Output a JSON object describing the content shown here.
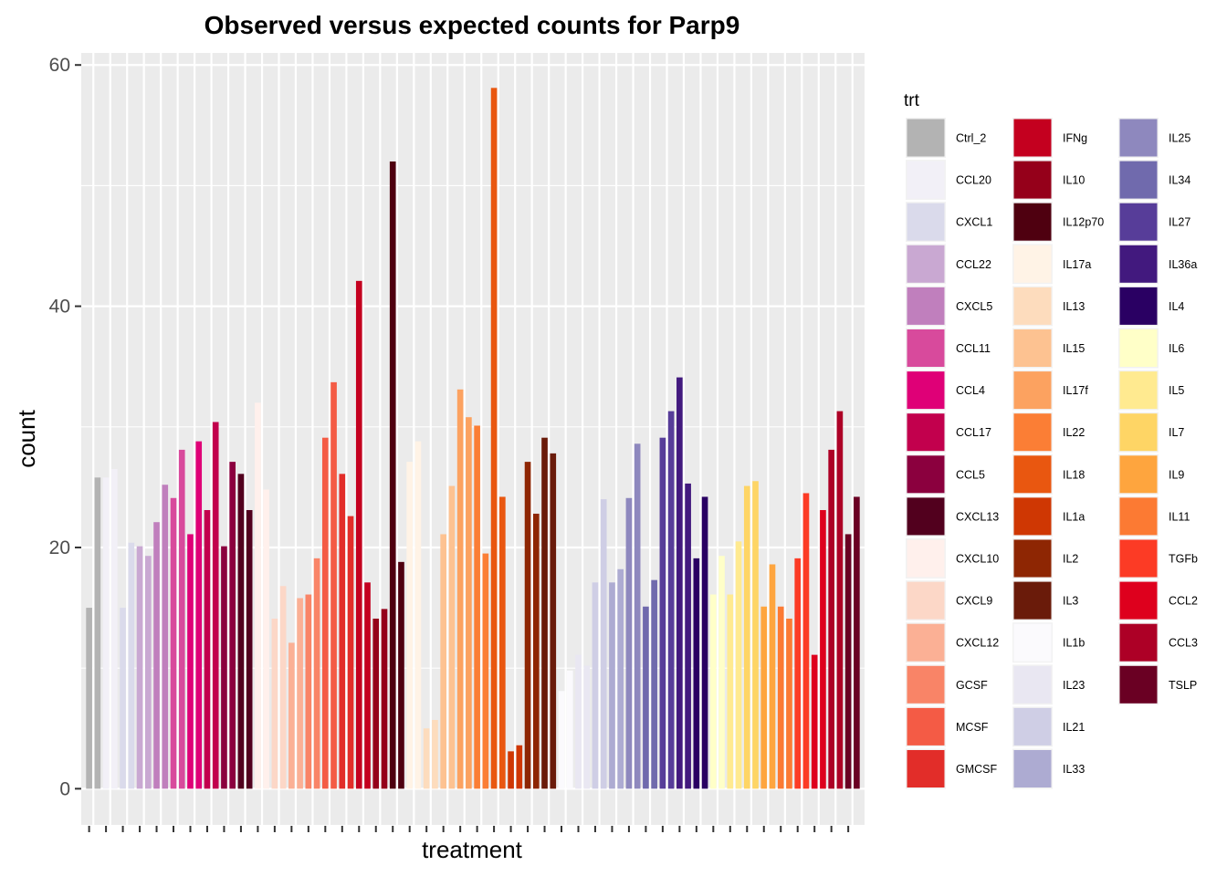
{
  "chart_data": {
    "type": "bar",
    "title": "Observed versus expected counts for Parp9",
    "xlabel": "treatment",
    "ylabel": "count",
    "ylim": [
      -3,
      61
    ],
    "yticks": [
      0,
      20,
      40,
      60
    ],
    "grid": true,
    "panel_background": "#ebebeb",
    "legend": {
      "title": "trt",
      "placement": "right",
      "columns": 3,
      "items": [
        {
          "label": "Ctrl_2",
          "color": "#b3b3b3"
        },
        {
          "label": "CCL20",
          "color": "#f2f0f7"
        },
        {
          "label": "CXCL1",
          "color": "#dadaeb"
        },
        {
          "label": "CCL22",
          "color": "#c9a8d2"
        },
        {
          "label": "CXCL5",
          "color": "#c07fbd"
        },
        {
          "label": "CCL11",
          "color": "#d84a9c"
        },
        {
          "label": "CCL4",
          "color": "#df0077"
        },
        {
          "label": "CCL17",
          "color": "#c2004d"
        },
        {
          "label": "CCL5",
          "color": "#8b003e"
        },
        {
          "label": "CXCL13",
          "color": "#52001e"
        },
        {
          "label": "CXCL10",
          "color": "#fff0ec"
        },
        {
          "label": "CXCL9",
          "color": "#fcd7c7"
        },
        {
          "label": "CXCL12",
          "color": "#fbb095"
        },
        {
          "label": "GCSF",
          "color": "#f98467"
        },
        {
          "label": "MCSF",
          "color": "#f45b45"
        },
        {
          "label": "GMCSF",
          "color": "#e22d29"
        },
        {
          "label": "IFNg",
          "color": "#c4001f"
        },
        {
          "label": "IL10",
          "color": "#95001a"
        },
        {
          "label": "IL12p70",
          "color": "#4f0010"
        },
        {
          "label": "IL17a",
          "color": "#fff3e6"
        },
        {
          "label": "IL13",
          "color": "#fddcbd"
        },
        {
          "label": "IL15",
          "color": "#fdc291"
        },
        {
          "label": "IL17f",
          "color": "#fca260"
        },
        {
          "label": "IL22",
          "color": "#fb7e35"
        },
        {
          "label": "IL18",
          "color": "#e95710"
        },
        {
          "label": "IL1a",
          "color": "#cf3703"
        },
        {
          "label": "IL2",
          "color": "#8e2603"
        },
        {
          "label": "IL3",
          "color": "#6a1b0a"
        },
        {
          "label": "IL1b",
          "color": "#fbfafd"
        },
        {
          "label": "IL23",
          "color": "#e9e7f2"
        },
        {
          "label": "IL21",
          "color": "#cfcee5"
        },
        {
          "label": "IL33",
          "color": "#adabd2"
        },
        {
          "label": "IL25",
          "color": "#8e88be"
        },
        {
          "label": "IL34",
          "color": "#706aad"
        },
        {
          "label": "IL27",
          "color": "#573d99"
        },
        {
          "label": "IL36a",
          "color": "#42197e"
        },
        {
          "label": "IL4",
          "color": "#2a0063"
        },
        {
          "label": "IL6",
          "color": "#ffffc8"
        },
        {
          "label": "IL5",
          "color": "#ffea90"
        },
        {
          "label": "IL7",
          "color": "#fed565"
        },
        {
          "label": "IL9",
          "color": "#fea53e"
        },
        {
          "label": "IL11",
          "color": "#fc7a33"
        },
        {
          "label": "TGFb",
          "color": "#fc3b25"
        },
        {
          "label": "CCL2",
          "color": "#de001d"
        },
        {
          "label": "CCL3",
          "color": "#ad0026"
        },
        {
          "label": "TSLP",
          "color": "#6a0023"
        }
      ]
    },
    "series": [
      {
        "treatment": "Ctrl_2",
        "values": [
          15,
          25.8
        ]
      },
      {
        "treatment": "CCL20",
        "values": [
          25.8,
          26.5
        ]
      },
      {
        "treatment": "CXCL1",
        "values": [
          15,
          20.4
        ]
      },
      {
        "treatment": "CCL22",
        "values": [
          20.1,
          19.3
        ]
      },
      {
        "treatment": "CXCL5",
        "values": [
          22.1,
          25.2
        ]
      },
      {
        "treatment": "CCL11",
        "values": [
          24.1,
          28.1
        ]
      },
      {
        "treatment": "CCL4",
        "values": [
          21.1,
          28.8
        ]
      },
      {
        "treatment": "CCL17",
        "values": [
          23.1,
          30.4
        ]
      },
      {
        "treatment": "CCL5",
        "values": [
          20.1,
          27.1
        ]
      },
      {
        "treatment": "CXCL13",
        "values": [
          26.1,
          23.1
        ]
      },
      {
        "treatment": "CXCL10",
        "values": [
          32.0,
          24.8
        ]
      },
      {
        "treatment": "CXCL9",
        "values": [
          14.1,
          16.8
        ]
      },
      {
        "treatment": "CXCL12",
        "values": [
          12.1,
          15.8
        ]
      },
      {
        "treatment": "GCSF",
        "values": [
          16.1,
          19.1
        ]
      },
      {
        "treatment": "MCSF",
        "values": [
          29.1,
          33.7
        ]
      },
      {
        "treatment": "GMCSF",
        "values": [
          26.1,
          22.6
        ]
      },
      {
        "treatment": "IFNg",
        "values": [
          42.1,
          17.1
        ]
      },
      {
        "treatment": "IL10",
        "values": [
          14.1,
          14.9
        ]
      },
      {
        "treatment": "IL12p70",
        "values": [
          52.0,
          18.8
        ]
      },
      {
        "treatment": "IL17a",
        "values": [
          27.1,
          28.8
        ]
      },
      {
        "treatment": "IL13",
        "values": [
          5.0,
          5.7
        ]
      },
      {
        "treatment": "IL15",
        "values": [
          21.1,
          25.1
        ]
      },
      {
        "treatment": "IL17f",
        "values": [
          33.1,
          30.8
        ]
      },
      {
        "treatment": "IL22",
        "values": [
          30.1,
          19.5
        ]
      },
      {
        "treatment": "IL18",
        "values": [
          58.1,
          24.2
        ]
      },
      {
        "treatment": "IL1a",
        "values": [
          3.1,
          3.6
        ]
      },
      {
        "treatment": "IL2",
        "values": [
          27.1,
          22.8
        ]
      },
      {
        "treatment": "IL3",
        "values": [
          29.1,
          27.8
        ]
      },
      {
        "treatment": "IL1b",
        "values": [
          8.1,
          9.8
        ]
      },
      {
        "treatment": "IL23",
        "values": [
          11.1,
          10.2
        ]
      },
      {
        "treatment": "IL21",
        "values": [
          17.1,
          24.0
        ]
      },
      {
        "treatment": "IL33",
        "values": [
          17.1,
          18.2
        ]
      },
      {
        "treatment": "IL25",
        "values": [
          24.1,
          28.6
        ]
      },
      {
        "treatment": "IL34",
        "values": [
          15.1,
          17.3
        ]
      },
      {
        "treatment": "IL27",
        "values": [
          29.1,
          31.3
        ]
      },
      {
        "treatment": "IL36a",
        "values": [
          34.1,
          25.3
        ]
      },
      {
        "treatment": "IL4",
        "values": [
          19.1,
          24.2
        ]
      },
      {
        "treatment": "IL6",
        "values": [
          16.1,
          19.3
        ]
      },
      {
        "treatment": "IL5",
        "values": [
          16.1,
          20.5
        ]
      },
      {
        "treatment": "IL7",
        "values": [
          25.1,
          25.5
        ]
      },
      {
        "treatment": "IL9",
        "values": [
          15.1,
          18.6
        ]
      },
      {
        "treatment": "IL11",
        "values": [
          15.1,
          14.1
        ]
      },
      {
        "treatment": "TGFb",
        "values": [
          19.1,
          24.5
        ]
      },
      {
        "treatment": "CCL2",
        "values": [
          11.1,
          23.1
        ]
      },
      {
        "treatment": "CCL3",
        "values": [
          28.1,
          31.3
        ]
      },
      {
        "treatment": "TSLP",
        "values": [
          21.1,
          24.2
        ]
      }
    ]
  }
}
